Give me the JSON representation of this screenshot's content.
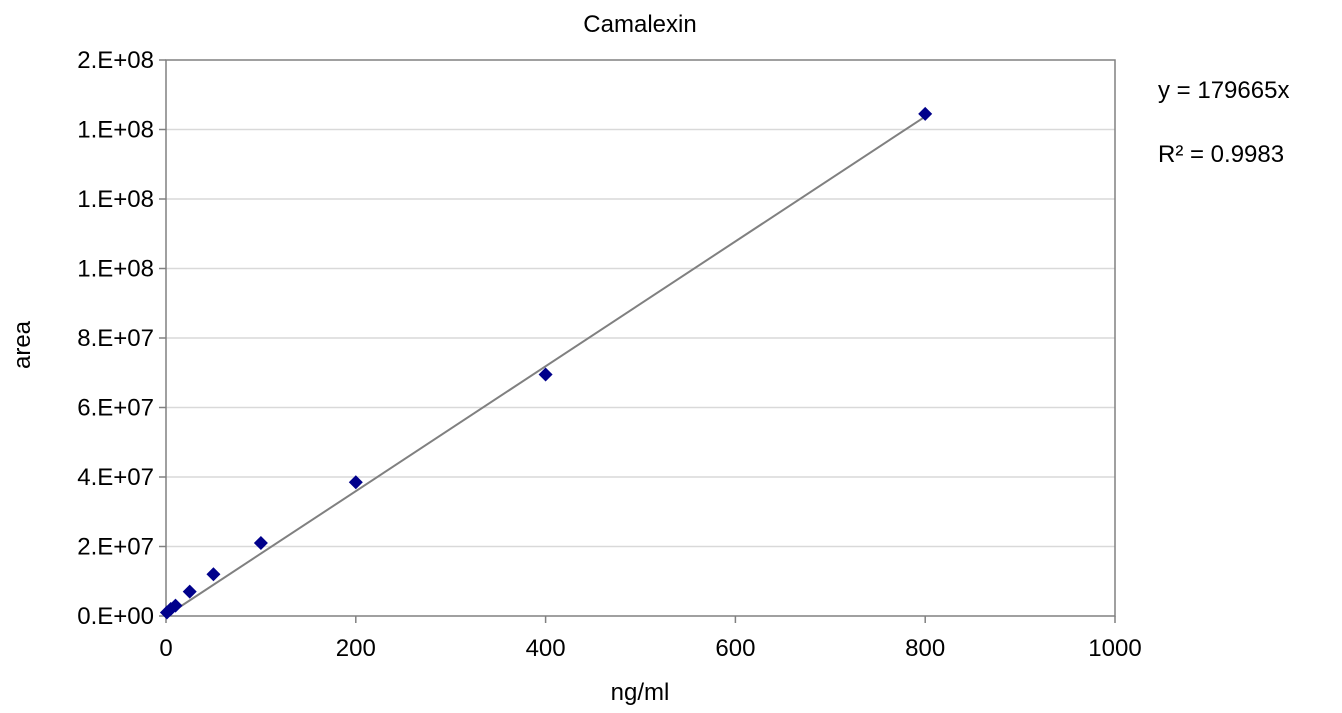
{
  "chart_data": {
    "type": "scatter",
    "title": "Camalexin",
    "xlabel": "ng/ml",
    "ylabel": "area",
    "xlim": [
      0,
      1000
    ],
    "ylim": [
      0,
      160000000
    ],
    "x_ticks": [
      0,
      200,
      400,
      600,
      800,
      1000
    ],
    "x_tick_labels": [
      "0",
      "200",
      "400",
      "600",
      "800",
      "1000"
    ],
    "y_ticks": [
      0,
      20000000,
      40000000,
      60000000,
      80000000,
      100000000,
      120000000,
      140000000,
      160000000
    ],
    "y_tick_labels": [
      "0.E+00",
      "2.E+07",
      "4.E+07",
      "6.E+07",
      "8.E+07",
      "1.E+08",
      "1.E+08",
      "1.E+08",
      "2.E+08"
    ],
    "grid": true,
    "legend": "none",
    "series": [
      {
        "x": [
          1,
          5,
          10,
          25,
          50,
          100,
          200,
          400,
          800
        ],
        "y": [
          1000000,
          2000000,
          3000000,
          7000000,
          12000000,
          21000000,
          38500000,
          69500000,
          144500000
        ],
        "marker": "diamond",
        "color": "#00008B"
      }
    ],
    "trendline": {
      "slope": 179665,
      "x_range": [
        0,
        800
      ],
      "color": "#808080"
    },
    "annotations": [
      "y = 179665x",
      "R² = 0.9983"
    ]
  }
}
